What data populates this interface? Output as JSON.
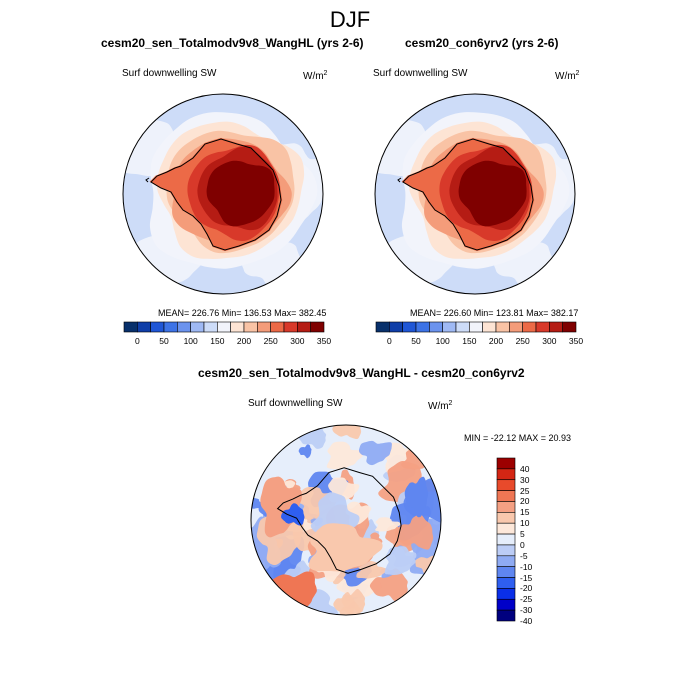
{
  "figure": {
    "season": "DJF",
    "colors": {
      "abs_scale": [
        "#08306b",
        "#0f3ea8",
        "#1f56d6",
        "#3d73e6",
        "#6b93ee",
        "#9fb9f4",
        "#cddcf8",
        "#f2f4fb",
        "#fde4d4",
        "#f9c3a5",
        "#f49c7a",
        "#ec6a47",
        "#d8392a",
        "#b51c14",
        "#7f0000"
      ],
      "diff_scale": [
        "#00007f",
        "#0000c8",
        "#0a2fe8",
        "#2f5ff0",
        "#5f86f0",
        "#8fabf3",
        "#bccdf6",
        "#e6eefb",
        "#fde8da",
        "#f9c8ad",
        "#f4a083",
        "#ef7654",
        "#e84a2b",
        "#d42614",
        "#9c0000"
      ]
    },
    "top_left": {
      "title": "cesm20_sen_Totalmodv9v8_WangHL (yrs 2-6)",
      "variable": "Surf downwelling SW",
      "units_base": "W/m",
      "units_exp": "2",
      "stats": "MEAN= 226.76  Min= 136.53  Max= 382.45",
      "labelbar_ticks": [
        "0",
        "50",
        "100",
        "150",
        "200",
        "250",
        "300",
        "350"
      ]
    },
    "top_right": {
      "title": "cesm20_con6yrv2 (yrs 2-6)",
      "variable": "Surf downwelling SW",
      "units_base": "W/m",
      "units_exp": "2",
      "stats": "MEAN= 226.60  Min= 123.81  Max= 382.17",
      "labelbar_ticks": [
        "0",
        "50",
        "100",
        "150",
        "200",
        "250",
        "300",
        "350"
      ]
    },
    "bottom": {
      "title": "cesm20_sen_Totalmodv9v8_WangHL - cesm20_con6yrv2",
      "variable": "Surf downwelling SW",
      "units_base": "W/m",
      "units_exp": "2",
      "stats": "MIN = -22.12 MAX =  20.93",
      "labelbar_ticks": [
        "40",
        "30",
        "25",
        "20",
        "15",
        "10",
        "5",
        "0",
        "-5",
        "-10",
        "-15",
        "-20",
        "-25",
        "-30",
        "-40"
      ]
    }
  }
}
